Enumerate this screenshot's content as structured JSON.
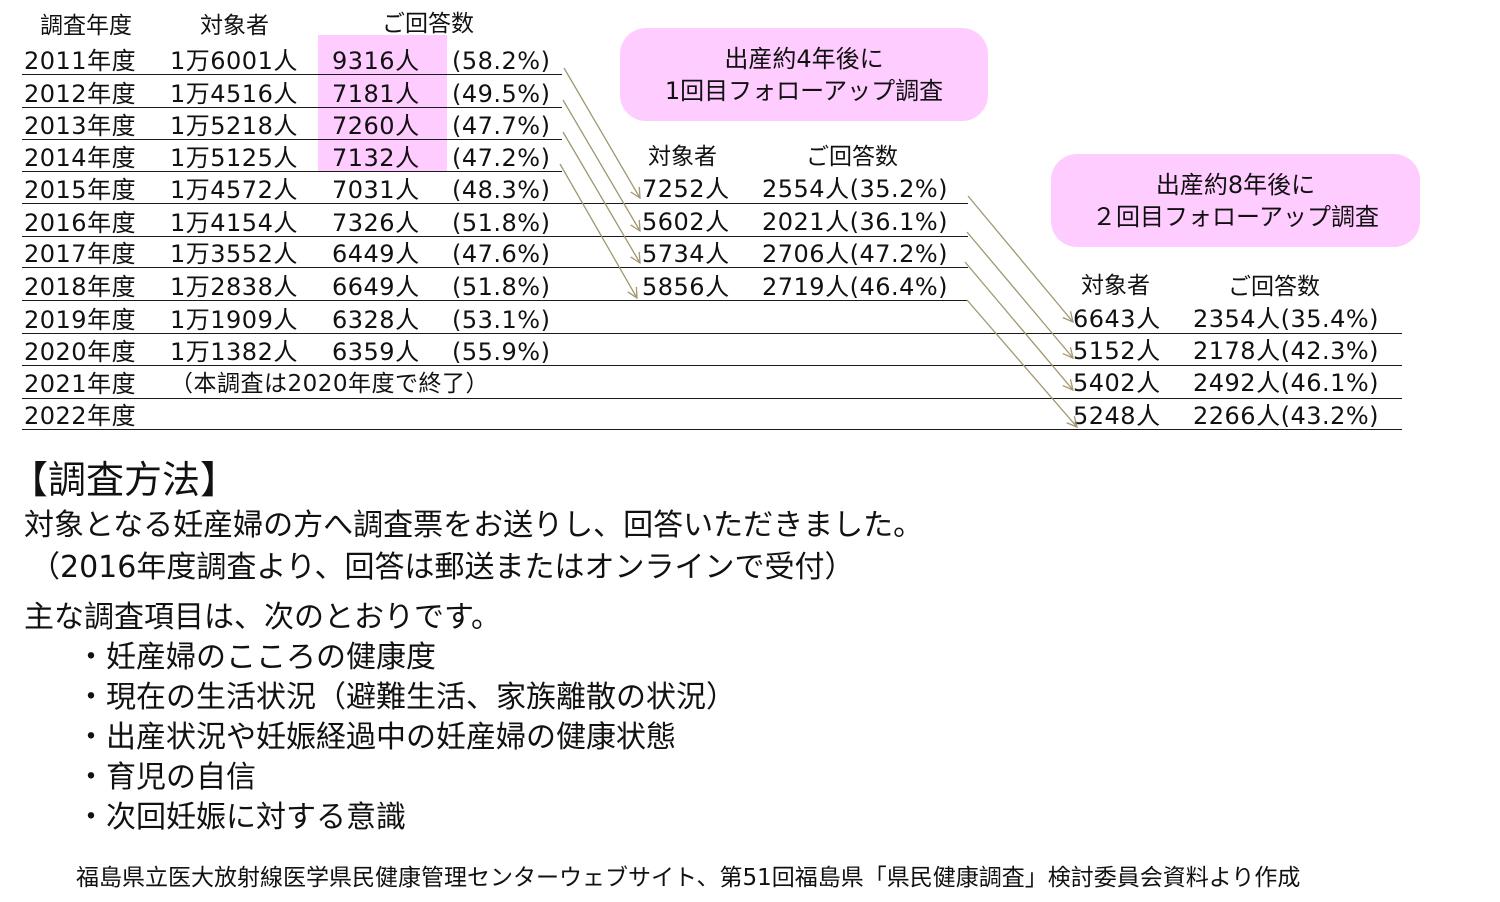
{
  "main_table": {
    "headers": {
      "year": "調査年度",
      "target": "対象者",
      "responses": "ご回答数"
    },
    "rows": [
      {
        "year": "2011年度",
        "target": "1万6001人",
        "responses": "9316人",
        "rate": "(58.2%)"
      },
      {
        "year": "2012年度",
        "target": "1万4516人",
        "responses": "7181人",
        "rate": "(49.5%)"
      },
      {
        "year": "2013年度",
        "target": "1万5218人",
        "responses": "7260人",
        "rate": "(47.7%)"
      },
      {
        "year": "2014年度",
        "target": "1万5125人",
        "responses": "7132人",
        "rate": "(47.2%)"
      },
      {
        "year": "2015年度",
        "target": "1万4572人",
        "responses": "7031人",
        "rate": "(48.3%)"
      },
      {
        "year": "2016年度",
        "target": "1万4154人",
        "responses": "7326人",
        "rate": "(51.8%)"
      },
      {
        "year": "2017年度",
        "target": "1万3552人",
        "responses": "6449人",
        "rate": "(47.6%)"
      },
      {
        "year": "2018年度",
        "target": "1万2838人",
        "responses": "6649人",
        "rate": "(51.8%)"
      },
      {
        "year": "2019年度",
        "target": "1万1909人",
        "responses": "6328人",
        "rate": "(53.1%)"
      },
      {
        "year": "2020年度",
        "target": "1万1382人",
        "responses": "6359人",
        "rate": "(55.9%)"
      },
      {
        "year": "2021年度",
        "note": "（本調査は2020年度で終了）"
      },
      {
        "year": "2022年度"
      }
    ],
    "highlight_color": "#ffccff"
  },
  "followup1": {
    "callout_line1": "出産約4年後に",
    "callout_line2": "1回目フォローアップ調査",
    "headers": {
      "target": "対象者",
      "responses": "ご回答数"
    },
    "rows": [
      {
        "target": "7252人",
        "responses": "2554人(35.2%)"
      },
      {
        "target": "5602人",
        "responses": "2021人(36.1%)"
      },
      {
        "target": "5734人",
        "responses": "2706人(47.2%)"
      },
      {
        "target": "5856人",
        "responses": "2719人(46.4%)"
      }
    ]
  },
  "followup2": {
    "callout_line1": "出産約8年後に",
    "callout_line2": "２回目フォローアップ調査",
    "headers": {
      "target": "対象者",
      "responses": "ご回答数"
    },
    "rows": [
      {
        "target": "6643人",
        "responses": "2354人(35.4%)"
      },
      {
        "target": "5152人",
        "responses": "2178人(42.3%)"
      },
      {
        "target": "5402人",
        "responses": "2492人(46.1%)"
      },
      {
        "target": "5248人",
        "responses": "2266人(43.2%)"
      }
    ]
  },
  "method": {
    "title": "【調査方法】",
    "line1": "対象となる妊産婦の方へ調査票をお送りし、回答いただきました。",
    "line2": "（2016年度調査より、回答は郵送またはオンラインで受付）",
    "items_intro": "主な調査項目は、次のとおりです。",
    "items": [
      "・妊産婦のこころの健康度",
      "・現在の生活状況（避難生活、家族離散の状況）",
      "・出産状況や妊娠経過中の妊産婦の健康状態",
      "・育児の自信",
      "・次回妊娠に対する意識"
    ]
  },
  "footer": {
    "source": "福島県立医大放射線医学県民健康管理センターウェブサイト、第51回福島県「県民健康調査」検討委員会資料より作成"
  },
  "colors": {
    "callout_bg": "#ffccff",
    "arrow": "#a09870",
    "text": "#111111"
  }
}
